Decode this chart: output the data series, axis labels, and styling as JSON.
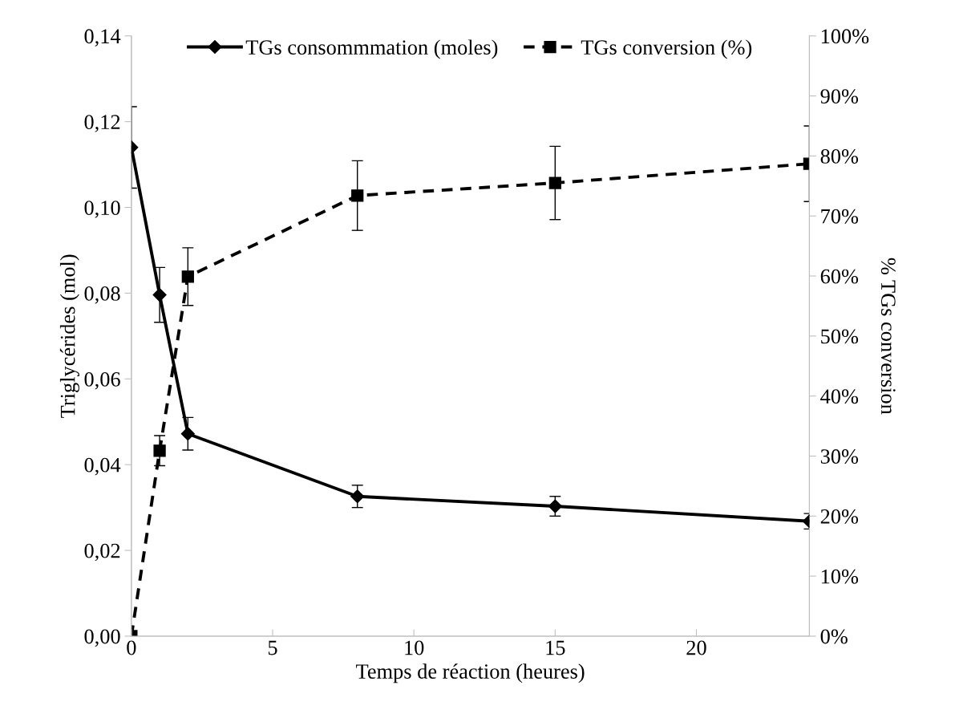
{
  "chart_data": {
    "type": "line",
    "xlabel": "Temps de réaction (heures)",
    "ylabel": "Triglycérides (mol)",
    "y2label": "% TGs conversion",
    "x": [
      0,
      1,
      2,
      8,
      15,
      24
    ],
    "xlim": [
      0,
      24
    ],
    "xticks": [
      0,
      5,
      10,
      15,
      20
    ],
    "ylim": [
      0,
      0.14
    ],
    "yticks": [
      {
        "value": 0,
        "label": "0,00"
      },
      {
        "value": 0.02,
        "label": "0,02"
      },
      {
        "value": 0.04,
        "label": "0,04"
      },
      {
        "value": 0.06,
        "label": "0,06"
      },
      {
        "value": 0.08,
        "label": "0,08"
      },
      {
        "value": 0.1,
        "label": "0,10"
      },
      {
        "value": 0.12,
        "label": "0,12"
      },
      {
        "value": 0.14,
        "label": "0,14"
      }
    ],
    "y2lim": [
      0,
      100
    ],
    "y2ticks": [
      {
        "value": 0,
        "label": "0%"
      },
      {
        "value": 10,
        "label": "10%"
      },
      {
        "value": 20,
        "label": "20%"
      },
      {
        "value": 30,
        "label": "30%"
      },
      {
        "value": 40,
        "label": "40%"
      },
      {
        "value": 50,
        "label": "50%"
      },
      {
        "value": 60,
        "label": "60%"
      },
      {
        "value": 70,
        "label": "70%"
      },
      {
        "value": 80,
        "label": "80%"
      },
      {
        "value": 90,
        "label": "90%"
      },
      {
        "value": 100,
        "label": "100%"
      }
    ],
    "grid": false,
    "legend": "top",
    "series": [
      {
        "name": "TGs consommmation (moles)",
        "color": "#000000",
        "marker": "diamond",
        "line_style": "solid",
        "values": [
          0.114,
          0.0796,
          0.0472,
          0.0326,
          0.0303,
          0.0268
        ],
        "errors": [
          0.0095,
          0.0064,
          0.0038,
          0.0026,
          0.0023,
          0.0018
        ]
      },
      {
        "name": "TGs conversion (%)",
        "color": "#000000",
        "marker": "square",
        "line_style": "dashed",
        "axis": "y2",
        "values": [
          0,
          30.9,
          59.9,
          73.4,
          75.5,
          78.7
        ],
        "errors": [
          null,
          2.5,
          4.8,
          5.8,
          6.1,
          6.3
        ]
      }
    ]
  }
}
